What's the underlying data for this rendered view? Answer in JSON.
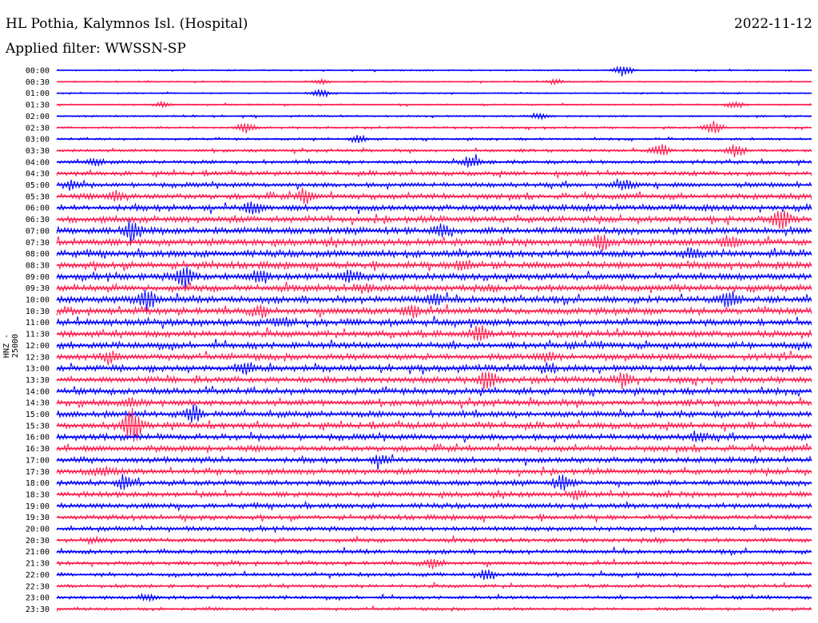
{
  "header": {
    "station": "HL Pothia, Kalymnos Isl. (Hospital)",
    "date": "2022-11-12",
    "filter": "Applied filter: WWSSN-SP"
  },
  "colors": {
    "even_hour": "#0000ff",
    "odd_half": "#ff1a4d"
  },
  "chart_data": {
    "type": "line",
    "ylabel": "HNZ - 25000",
    "time_labels": [
      "00:00",
      "00:30",
      "01:00",
      "01:30",
      "02:00",
      "02:30",
      "03:00",
      "03:30",
      "04:00",
      "04:30",
      "05:00",
      "05:30",
      "06:00",
      "06:30",
      "07:00",
      "07:30",
      "08:00",
      "08:30",
      "09:00",
      "09:30",
      "10:00",
      "10:30",
      "11:00",
      "11:30",
      "12:00",
      "12:30",
      "13:00",
      "13:30",
      "14:00",
      "14:30",
      "15:00",
      "15:30",
      "16:00",
      "16:30",
      "17:00",
      "17:30",
      "18:00",
      "18:30",
      "19:00",
      "19:30",
      "20:00",
      "20:30",
      "21:00",
      "21:30",
      "22:00",
      "22:30",
      "23:00",
      "23:30"
    ],
    "noise_level": [
      0.8,
      0.8,
      0.8,
      0.9,
      1.0,
      1.2,
      1.3,
      1.6,
      2.0,
      2.4,
      2.6,
      3.0,
      3.3,
      3.5,
      3.7,
      3.8,
      3.8,
      3.8,
      3.8,
      3.7,
      3.7,
      3.6,
      3.6,
      3.5,
      3.5,
      3.5,
      3.5,
      3.4,
      3.4,
      3.4,
      3.4,
      3.3,
      3.3,
      3.2,
      3.1,
      3.1,
      3.0,
      2.9,
      2.8,
      2.7,
      2.5,
      2.4,
      2.3,
      2.1,
      2.0,
      1.9,
      1.8,
      1.7
    ],
    "events": [
      [
        0,
        0.75,
        8
      ],
      [
        1,
        0.35,
        3
      ],
      [
        1,
        0.66,
        3
      ],
      [
        2,
        0.35,
        5
      ],
      [
        3,
        0.14,
        3
      ],
      [
        3,
        0.9,
        4
      ],
      [
        4,
        0.64,
        4
      ],
      [
        5,
        0.25,
        6
      ],
      [
        5,
        0.87,
        8
      ],
      [
        6,
        0.4,
        4
      ],
      [
        7,
        0.8,
        8
      ],
      [
        7,
        0.9,
        9
      ],
      [
        8,
        0.55,
        8
      ],
      [
        8,
        0.05,
        4
      ],
      [
        10,
        0.02,
        5
      ],
      [
        10,
        0.75,
        7
      ],
      [
        11,
        0.08,
        7
      ],
      [
        11,
        0.33,
        8
      ],
      [
        12,
        0.26,
        8
      ],
      [
        13,
        0.96,
        12
      ],
      [
        14,
        0.1,
        14
      ],
      [
        14,
        0.51,
        7
      ],
      [
        15,
        0.72,
        9
      ],
      [
        15,
        0.89,
        6
      ],
      [
        16,
        0.84,
        5
      ],
      [
        17,
        0.54,
        7
      ],
      [
        18,
        0.17,
        12
      ],
      [
        18,
        0.27,
        8
      ],
      [
        18,
        0.39,
        7
      ],
      [
        19,
        0.41,
        5
      ],
      [
        20,
        0.12,
        12
      ],
      [
        20,
        0.5,
        6
      ],
      [
        20,
        0.89,
        9
      ],
      [
        21,
        0.27,
        6
      ],
      [
        21,
        0.47,
        6
      ],
      [
        22,
        0.3,
        5
      ],
      [
        23,
        0.56,
        8
      ],
      [
        25,
        0.07,
        7
      ],
      [
        25,
        0.65,
        5
      ],
      [
        26,
        0.25,
        6
      ],
      [
        26,
        0.65,
        5
      ],
      [
        27,
        0.57,
        10
      ],
      [
        27,
        0.75,
        8
      ],
      [
        29,
        0.1,
        4
      ],
      [
        30,
        0.18,
        10
      ],
      [
        31,
        0.1,
        22
      ],
      [
        32,
        0.85,
        6
      ],
      [
        34,
        0.43,
        6
      ],
      [
        35,
        0.06,
        5
      ],
      [
        36,
        0.09,
        7
      ],
      [
        36,
        0.67,
        9
      ],
      [
        37,
        0.69,
        5
      ],
      [
        41,
        0.05,
        3
      ],
      [
        43,
        0.5,
        6
      ],
      [
        44,
        0.57,
        6
      ],
      [
        46,
        0.12,
        4
      ]
    ]
  }
}
